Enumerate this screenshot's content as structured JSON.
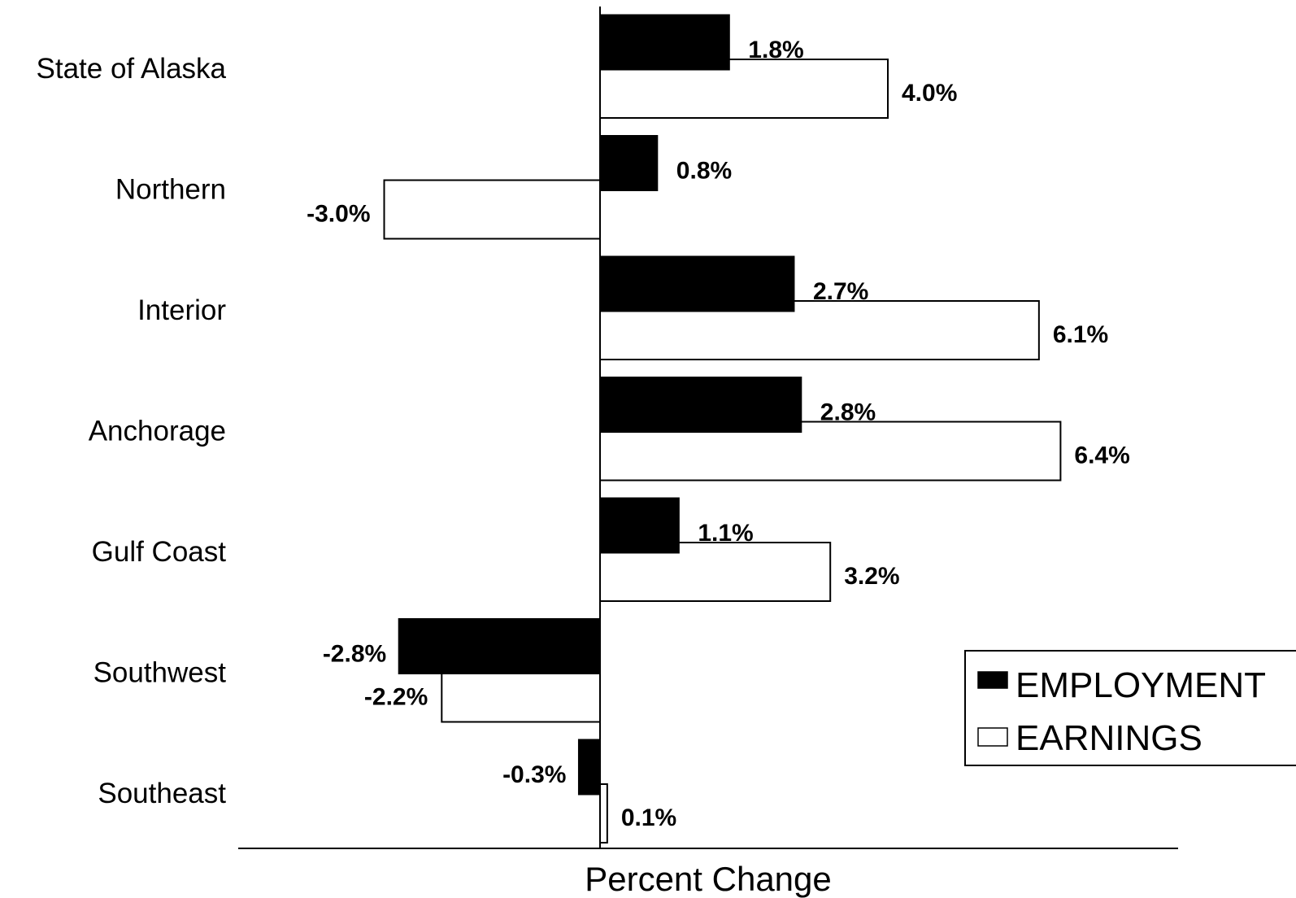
{
  "chart_data": {
    "type": "bar",
    "orientation": "horizontal",
    "categories": [
      "State of Alaska",
      "Northern",
      "Interior",
      "Anchorage",
      "Gulf Coast",
      "Southwest",
      "Southeast"
    ],
    "series": [
      {
        "name": "EMPLOYMENT",
        "values": [
          1.8,
          0.8,
          2.7,
          2.8,
          1.1,
          -2.8,
          -0.3
        ],
        "labels": [
          "1.8%",
          "0.8%",
          "2.7%",
          "2.8%",
          "1.1%",
          "-2.8%",
          "-0.3%"
        ],
        "fill": "#000000"
      },
      {
        "name": "EARNINGS",
        "values": [
          4.0,
          -3.0,
          6.1,
          6.4,
          3.2,
          -2.2,
          0.1
        ],
        "labels": [
          "4.0%",
          "-3.0%",
          "6.1%",
          "6.4%",
          "3.2%",
          "-2.2%",
          "0.1%"
        ],
        "fill": "#ffffff"
      }
    ],
    "xlabel": "Percent Change",
    "xlim": [
      -5.0,
      8.0
    ],
    "grid": false,
    "legend_position": "right"
  }
}
